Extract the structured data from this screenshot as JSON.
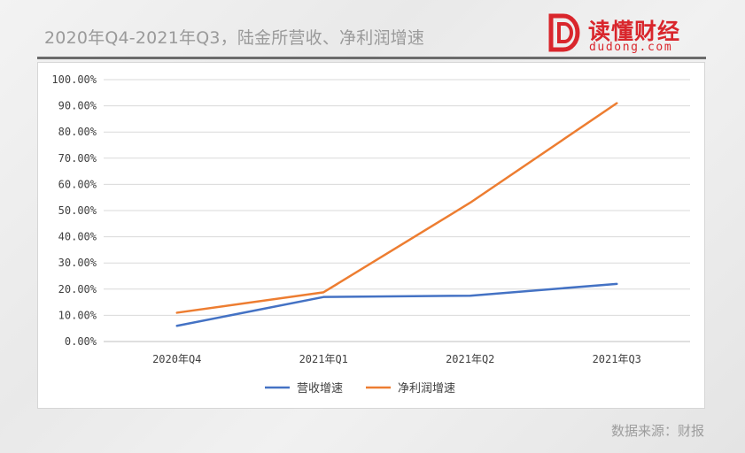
{
  "header": {
    "title": "2020年Q4-2021年Q3，陆金所营收、净利润增速"
  },
  "logo": {
    "name": "读懂财经",
    "domain": "dudong.com",
    "color": "#d9262c"
  },
  "footer": {
    "source": "数据来源：财报"
  },
  "chart_data": {
    "type": "line",
    "categories": [
      "2020年Q4",
      "2021年Q1",
      "2021年Q2",
      "2021年Q3"
    ],
    "series": [
      {
        "name": "营收增速",
        "color": "#4472c4",
        "values": [
          6.0,
          17.0,
          17.5,
          22.0
        ]
      },
      {
        "name": "净利润增速",
        "color": "#ed7d31",
        "values": [
          11.0,
          18.8,
          53.0,
          91.0
        ]
      }
    ],
    "ylim": [
      0,
      100
    ],
    "yticks": [
      "0.00%",
      "10.00%",
      "20.00%",
      "30.00%",
      "40.00%",
      "50.00%",
      "60.00%",
      "70.00%",
      "80.00%",
      "90.00%",
      "100.00%"
    ],
    "unit": "%",
    "grid": true,
    "legend": "bottom",
    "title": "",
    "xlabel": "",
    "ylabel": ""
  }
}
